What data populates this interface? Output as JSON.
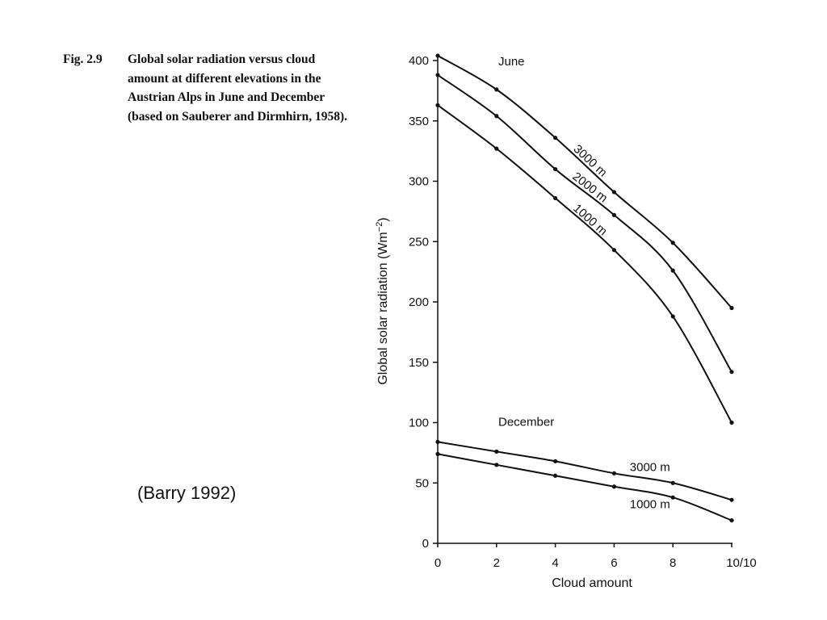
{
  "figure": {
    "label": "Fig. 2.9",
    "caption": "Global solar radiation versus cloud amount at different elevations in the Austrian Alps in June and December (based on Sauberer and Dirmhirn, 1958).",
    "citation": "(Barry 1992)"
  },
  "chart_data": {
    "type": "line",
    "xlabel": "Cloud amount",
    "ylabel": "Global solar radiation (Wm",
    "ylabel_superscript": "−2",
    "ylabel_close": ")",
    "x_ticks": [
      "0",
      "2",
      "4",
      "6",
      "8",
      "10/10"
    ],
    "y_ticks": [
      "0",
      "50",
      "100",
      "150",
      "200",
      "250",
      "300",
      "350",
      "400"
    ],
    "xlim": [
      0,
      10
    ],
    "ylim": [
      0,
      400
    ],
    "grid": false,
    "x": [
      0,
      2,
      4,
      6,
      8,
      10
    ],
    "groups": [
      {
        "name": "June",
        "series": [
          {
            "name": "3000 m",
            "values": [
              404,
              376,
              336,
              291,
              249,
              195
            ]
          },
          {
            "name": "2000 m",
            "values": [
              388,
              354,
              310,
              272,
              226,
              142
            ]
          },
          {
            "name": "1000 m",
            "values": [
              363,
              327,
              286,
              243,
              188,
              100
            ]
          }
        ]
      },
      {
        "name": "December",
        "series": [
          {
            "name": "3000 m",
            "values": [
              84,
              76,
              68,
              58,
              50,
              36
            ]
          },
          {
            "name": "1000 m",
            "values": [
              74,
              65,
              56,
              47,
              38,
              19
            ]
          }
        ]
      }
    ]
  }
}
